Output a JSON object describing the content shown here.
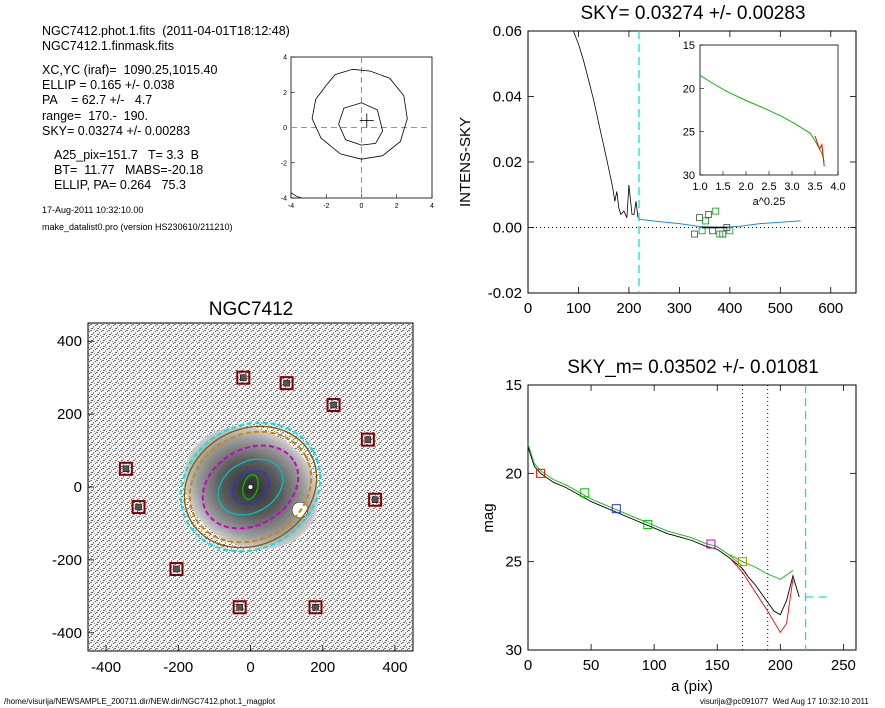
{
  "header": {
    "line1": "NGC7412.phot.1.fits  (2011-04-01T18:12:48)",
    "line2": "NGC7412.1.finmask.fits",
    "xcyc": "XC,YC (iraf)=  1090.25,1015.40",
    "ellip": "ELLIP = 0.165 +/- 0.038",
    "pa": "PA    = 62.7 +/-   4.7",
    "range": "range=  170.-  190.",
    "sky": "SKY= 0.03274 +/- 0.00283",
    "a25": "A25_pix=151.7   T= 3.3  B",
    "bt": "BT=  11.77   MABS=-20.18",
    "ellip_pa": "ELLIP, PA= 0.264   75.3",
    "date": "17-Aug-2011 10:32:10.00",
    "program": "make_datalist0.pro (version HS230610/211210)"
  },
  "footer": {
    "path": "/home/visurija/NEWSAMPLE_200711.dir/NEW.dir/NGC7412.phot.1_magplot",
    "user": "visurija@pc091077  Wed Aug 17 10:32:10 2011"
  },
  "galaxy_panel": {
    "title": "NGC7412"
  },
  "colors": {
    "sky_marker": "#00e5ee",
    "red": "#ff0000",
    "green": "#00c000",
    "blue": "#3333cc"
  },
  "chart_data": [
    {
      "id": "center_contour",
      "type": "line",
      "title": "",
      "xlim": [
        -4,
        4
      ],
      "ylim": [
        -4,
        4
      ],
      "xticks": [
        -4,
        -2,
        0,
        2,
        4
      ],
      "yticks": [
        -4,
        -2,
        0,
        2,
        4
      ],
      "contours": [
        {
          "name": "",
          "x": [
            -2.0,
            -1.5,
            -0.5,
            0.5,
            1.6,
            2.4,
            2.6,
            2.2,
            1.2,
            0.0,
            -1.2,
            -2.3,
            -2.8,
            -2.6,
            -2.0
          ],
          "y": [
            2.4,
            3.0,
            3.3,
            3.2,
            2.8,
            1.8,
            0.5,
            -0.8,
            -1.6,
            -1.8,
            -1.5,
            -0.6,
            0.5,
            1.6,
            2.4
          ]
        },
        {
          "name": "",
          "x": [
            -1.0,
            0.0,
            0.9,
            1.2,
            0.8,
            0.0,
            -0.9,
            -1.3,
            -1.0
          ],
          "y": [
            1.1,
            1.4,
            1.0,
            -0.2,
            -0.9,
            -1.0,
            -0.7,
            0.2,
            1.1
          ]
        },
        {
          "name": "",
          "x": [
            -4.0,
            -3.7,
            -3.4
          ],
          "y": [
            -3.7,
            -3.9,
            -4.0
          ]
        }
      ],
      "center_cross": [
        0.3,
        0.4
      ],
      "dashed_center": [
        0,
        0
      ]
    },
    {
      "id": "sky_profile",
      "type": "line",
      "title": "SKY= 0.03274 +/- 0.00283",
      "xlabel": "",
      "ylabel": "INTENS-SKY",
      "xlim": [
        0,
        650
      ],
      "ylim": [
        -0.02,
        0.06
      ],
      "xticks": [
        0,
        100,
        200,
        300,
        400,
        500,
        600
      ],
      "yticks": [
        -0.02,
        0.0,
        0.02,
        0.04,
        0.06
      ],
      "ytick_labels": [
        "-0.02",
        "0.00",
        "0.02",
        "0.04",
        "0.06"
      ],
      "vline": 220,
      "series": [
        {
          "name": "",
          "x": [
            90,
            100,
            110,
            120,
            130,
            140,
            150,
            160,
            168,
            172,
            176,
            180,
            184,
            190,
            196,
            200,
            206,
            210,
            214,
            218
          ],
          "y": [
            0.06,
            0.056,
            0.051,
            0.045,
            0.039,
            0.032,
            0.025,
            0.018,
            0.012,
            0.008,
            0.011,
            0.006,
            0.004,
            0.005,
            0.003,
            0.013,
            0.004,
            0.004,
            0.008,
            0.003
          ]
        },
        {
          "name": "",
          "x": [
            220,
            260,
            300,
            340,
            380,
            420,
            460,
            500,
            540
          ],
          "y": [
            0.0025,
            0.0018,
            0.0012,
            0.0003,
            0.0,
            0.0004,
            0.0012,
            0.0016,
            0.002
          ]
        }
      ],
      "markers": {
        "x": [
          330,
          345,
          358,
          372,
          386,
          400,
          340,
          352,
          366,
          380,
          394
        ],
        "y": [
          -0.002,
          -0.001,
          0.004,
          0.005,
          -0.002,
          -0.001,
          0.003,
          0.002,
          -0.001,
          -0.002,
          0.0
        ]
      },
      "inset": {
        "xlabel": "a^0.25",
        "xlim": [
          1.0,
          4.0
        ],
        "ylim": [
          15,
          30
        ],
        "xticks": [
          1.0,
          1.5,
          2.0,
          2.5,
          3.0,
          3.5,
          4.0
        ],
        "xtick_labels": [
          "1.0",
          "1.5",
          "2.0",
          "2.5",
          "3.0",
          "3.5",
          "4.0"
        ],
        "yticks": [
          15,
          20,
          25,
          30
        ],
        "series": [
          {
            "name": "",
            "x": [
              1.0,
              1.3,
              1.6,
              2.0,
              2.4,
              2.8,
              3.1,
              3.4,
              3.55,
              3.65,
              3.7
            ],
            "y": [
              18.5,
              19.5,
              20.4,
              21.4,
              22.3,
              23.3,
              24.2,
              25.2,
              26.5,
              27.5,
              28.5
            ]
          },
          {
            "name": "",
            "x": [
              3.5,
              3.6,
              3.65,
              3.7
            ],
            "y": [
              25.5,
              27.0,
              26.5,
              29.0
            ]
          }
        ]
      }
    },
    {
      "id": "mag_profile",
      "type": "line",
      "title": "SKY_m=  0.03502 +/- 0.01081",
      "xlabel": "a (pix)",
      "ylabel": "mag",
      "xlim": [
        0,
        260
      ],
      "ylim": [
        15,
        30
      ],
      "xticks": [
        0,
        50,
        100,
        150,
        200,
        250
      ],
      "yticks": [
        15,
        20,
        25,
        30
      ],
      "vlines_dotted": [
        170,
        190
      ],
      "vline_dashed": 220,
      "sky_level": 27.0,
      "series": [
        {
          "name": "",
          "x": [
            0,
            5,
            10,
            20,
            30,
            40,
            50,
            60,
            70,
            80,
            90,
            100,
            110,
            120,
            130,
            140,
            150,
            160,
            165,
            170,
            175,
            180,
            185,
            190,
            195,
            200,
            205,
            210,
            215
          ],
          "y": [
            18.5,
            19.6,
            20.0,
            20.5,
            20.8,
            21.2,
            21.6,
            21.9,
            22.2,
            22.5,
            22.8,
            23.1,
            23.4,
            23.6,
            23.8,
            24.1,
            24.3,
            24.8,
            25.1,
            25.4,
            25.9,
            26.3,
            26.8,
            27.3,
            27.8,
            28.0,
            27.2,
            25.8,
            27.0
          ]
        },
        {
          "name": "",
          "x": [
            160,
            170,
            180,
            190,
            200,
            205,
            210
          ],
          "y": [
            24.8,
            25.6,
            26.7,
            27.8,
            29.0,
            28.5,
            26.0
          ]
        },
        {
          "name": "",
          "x": [
            160,
            170,
            180,
            190,
            200,
            210
          ],
          "y": [
            24.6,
            25.0,
            25.3,
            25.7,
            26.0,
            25.5
          ]
        }
      ],
      "markers": {
        "x": [
          10,
          45,
          70,
          95,
          145,
          170
        ],
        "y": [
          20.0,
          21.1,
          22.0,
          22.9,
          24.0,
          25.0
        ],
        "colors": [
          "#ff0000",
          "#00c000",
          "#3333cc",
          "#00c000",
          "#cc00cc",
          "#cc8800"
        ]
      }
    },
    {
      "id": "galaxy_image",
      "type": "scatter",
      "title": "NGC7412",
      "xlim": [
        -450,
        450
      ],
      "ylim": [
        -450,
        450
      ],
      "xticks": [
        -400,
        -200,
        0,
        200,
        400
      ],
      "yticks": [
        -400,
        -200,
        0,
        200,
        400
      ],
      "sky_boxes": {
        "x": [
          -20,
          100,
          230,
          325,
          -345,
          -310,
          -205,
          -30,
          180,
          345
        ],
        "y": [
          300,
          285,
          225,
          130,
          50,
          -55,
          -225,
          -330,
          -330,
          -35
        ]
      },
      "ellipses": [
        {
          "a": 200,
          "b": 170,
          "pa": 30,
          "color": "#00e5ee",
          "dashed": true
        },
        {
          "a": 190,
          "b": 160,
          "pa": 30,
          "color": "#8b5a00",
          "dashed": false
        },
        {
          "a": 175,
          "b": 145,
          "pa": 30,
          "color": "#cc8800",
          "dashed": true
        },
        {
          "a": 140,
          "b": 105,
          "pa": 30,
          "color": "#cc00cc",
          "dashed": true
        },
        {
          "a": 95,
          "b": 70,
          "pa": 30,
          "color": "#00c0c0",
          "dashed": false
        },
        {
          "a": 55,
          "b": 40,
          "pa": 35,
          "color": "#3333cc",
          "dashed": false
        },
        {
          "a": 35,
          "b": 20,
          "pa": 75,
          "color": "#00c000",
          "dashed": false
        }
      ]
    }
  ]
}
